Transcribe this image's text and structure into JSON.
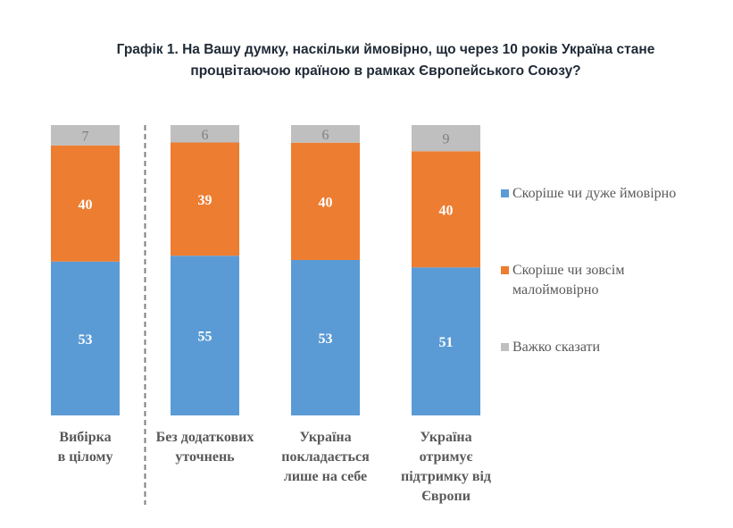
{
  "chart_data": {
    "type": "stacked-bar-100",
    "title": [
      "Графік 1. На Вашу думку, наскільки ймовірно, що через 10 років Україна стане",
      "процвітаючою країною в рамках Європейського Союзу?"
    ],
    "categories": [
      [
        "Вибірка",
        "в цілому"
      ],
      [
        "Без додаткових",
        "уточнень"
      ],
      [
        "Україна",
        "покладається",
        "лише на себе"
      ],
      [
        "Україна",
        "отримує",
        "підтримку від",
        "Європи"
      ]
    ],
    "series": [
      {
        "name": "Скоріше чи дуже ймовірно",
        "legend_lines": [
          "Скоріше чи дуже ймовірно"
        ],
        "color": "#5b9bd5",
        "values": [
          53,
          55,
          53,
          51
        ]
      },
      {
        "name": "Скоріше чи зовсім малоймовірно",
        "legend_lines": [
          "Скоріше чи зовсім",
          "малоймовірно"
        ],
        "color": "#ed7d31",
        "values": [
          40,
          39,
          40,
          40
        ]
      },
      {
        "name": "Важко сказати",
        "legend_lines": [
          "Важко сказати"
        ],
        "color": "#bfbfbf",
        "values": [
          7,
          6,
          6,
          9
        ]
      }
    ],
    "legend_position": "right",
    "separator_after_category": 0,
    "grid": false
  }
}
